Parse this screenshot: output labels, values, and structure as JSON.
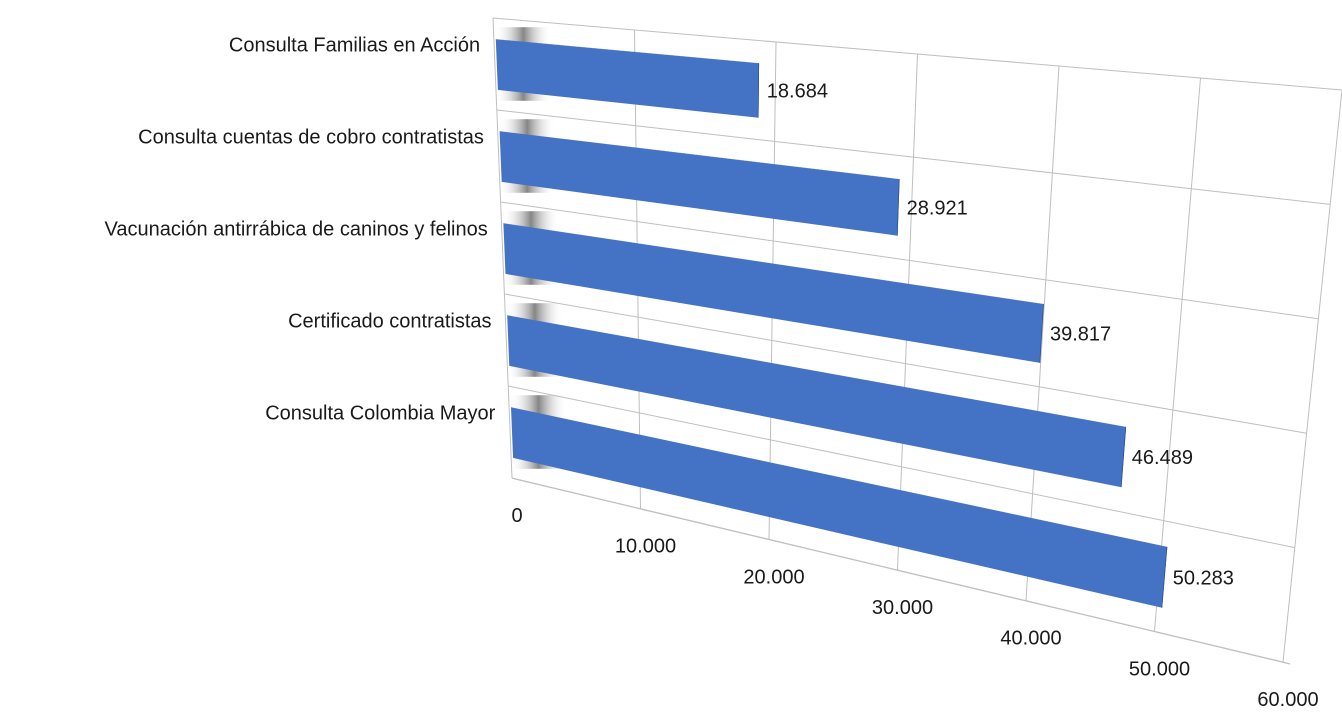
{
  "chart_data": {
    "type": "bar",
    "orientation": "horizontal",
    "style": "3d",
    "title": "",
    "xlabel": "",
    "ylabel": "",
    "categories": [
      "Consulta Colombia Mayor",
      "Certificado contratistas",
      "Vacunación antirrábica de caninos y felinos",
      "Consulta cuentas de cobro contratistas",
      "Consulta Familias en Acción"
    ],
    "values": [
      50283,
      46489,
      39817,
      28921,
      18684
    ],
    "value_labels": [
      "50.283",
      "46.489",
      "39.817",
      "28.921",
      "18.684"
    ],
    "xlim": [
      0,
      60000
    ],
    "x_ticks": [
      0,
      10000,
      20000,
      30000,
      40000,
      50000,
      60000
    ],
    "x_tick_labels": [
      "0",
      "10.000",
      "20.000",
      "30.000",
      "40.000",
      "50.000",
      "60.000"
    ],
    "grid": true,
    "legend": "none",
    "colors": {
      "bar_front": "#4472c4",
      "bar_top": "#3a63b0",
      "bar_side": "#2e4f8e",
      "grid": "#bfbfbf",
      "text": "#1a1a1a"
    }
  }
}
